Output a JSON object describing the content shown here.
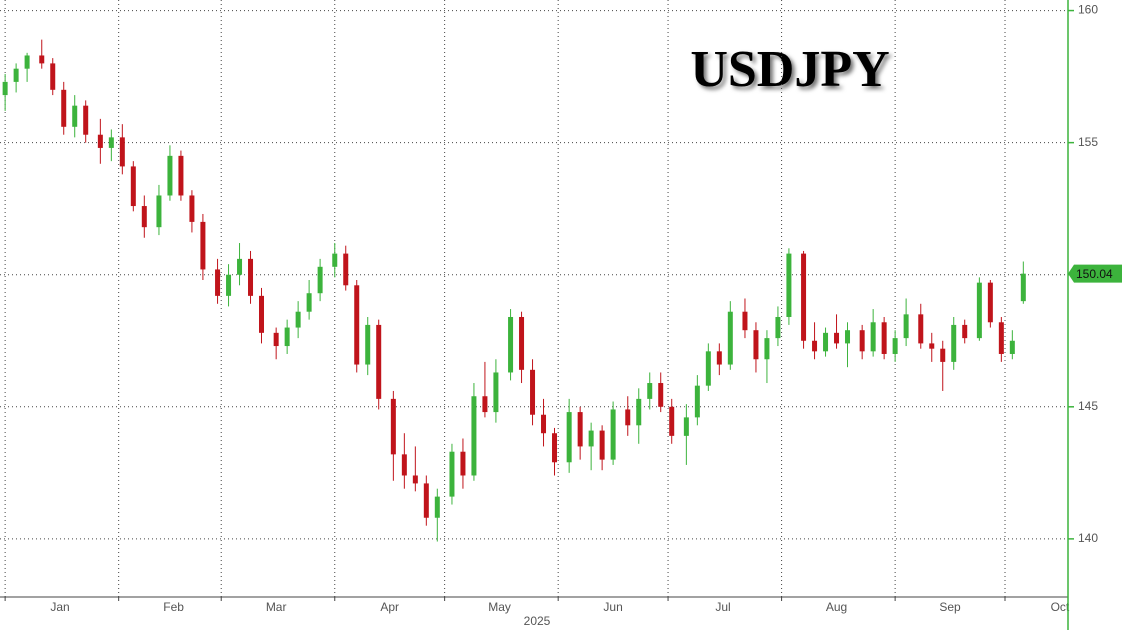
{
  "chart_data": {
    "type": "candlestick",
    "title": "USDJPY",
    "xlabel": "2025",
    "up_color": "#3cb33c",
    "down_color": "#c0141b",
    "axis_color": "#3cb33c",
    "grid": true,
    "xlim": [
      -1.4,
      290.2
    ],
    "ylim": [
      137.8,
      160.4
    ],
    "xticks": [
      {
        "value": 0,
        "label": "Jan"
      },
      {
        "value": 31,
        "label": "Feb"
      },
      {
        "value": 59,
        "label": "Mar"
      },
      {
        "value": 90,
        "label": "Apr"
      },
      {
        "value": 120,
        "label": "May"
      },
      {
        "value": 151,
        "label": "Jun"
      },
      {
        "value": 181,
        "label": "Jul"
      },
      {
        "value": 212,
        "label": "Aug"
      },
      {
        "value": 243,
        "label": "Sep"
      },
      {
        "value": 273,
        "label": "Oct"
      }
    ],
    "yticks": [
      140,
      145,
      150,
      155,
      160
    ],
    "x": [
      0,
      3,
      6,
      10,
      13,
      16,
      19,
      22,
      26,
      29,
      32,
      35,
      38,
      42,
      45,
      48,
      51,
      54,
      58,
      61,
      64,
      67,
      70,
      74,
      77,
      80,
      83,
      86,
      90,
      93,
      96,
      99,
      102,
      106,
      109,
      112,
      115,
      118,
      122,
      125,
      128,
      131,
      134,
      138,
      141,
      144,
      147,
      150,
      154,
      157,
      160,
      163,
      166,
      170,
      173,
      176,
      179,
      182,
      186,
      189,
      192,
      195,
      198,
      202,
      205,
      208,
      211,
      214,
      218,
      221,
      224,
      227,
      230,
      234,
      237,
      240,
      243,
      246,
      250,
      253,
      256,
      259,
      262,
      266,
      269,
      272,
      275,
      278
    ],
    "open": [
      156.8,
      157.3,
      157.8,
      158.3,
      158.0,
      157.0,
      155.6,
      156.4,
      155.3,
      154.8,
      155.2,
      154.1,
      152.6,
      151.8,
      153.0,
      154.5,
      153.0,
      152.0,
      150.2,
      149.2,
      150.0,
      150.6,
      149.2,
      147.8,
      147.3,
      148.0,
      148.6,
      149.3,
      150.3,
      150.8,
      149.6,
      146.6,
      148.1,
      145.3,
      143.2,
      142.4,
      142.1,
      140.8,
      141.6,
      143.3,
      142.4,
      145.4,
      144.8,
      146.3,
      148.4,
      146.4,
      144.7,
      144.0,
      142.9,
      144.8,
      143.5,
      144.1,
      143.0,
      144.9,
      144.3,
      145.3,
      145.9,
      145.0,
      143.9,
      144.6,
      145.8,
      147.1,
      146.6,
      148.6,
      147.9,
      146.8,
      147.6,
      148.4,
      150.8,
      147.5,
      147.1,
      147.8,
      147.4,
      147.9,
      147.1,
      148.2,
      147.0,
      147.6,
      148.5,
      147.4,
      147.2,
      146.7,
      148.1,
      147.6,
      149.7,
      148.2,
      147.0,
      149.0
    ],
    "high": [
      157.6,
      158.0,
      158.4,
      158.9,
      158.2,
      157.3,
      156.8,
      156.6,
      155.9,
      155.5,
      155.7,
      154.3,
      153.0,
      153.4,
      154.9,
      154.7,
      153.2,
      152.3,
      150.6,
      150.4,
      151.2,
      150.9,
      149.5,
      148.0,
      148.3,
      149.0,
      149.8,
      150.6,
      151.2,
      151.1,
      149.8,
      148.4,
      148.3,
      145.6,
      144.0,
      143.5,
      142.4,
      141.9,
      143.6,
      143.8,
      145.9,
      146.7,
      146.8,
      148.7,
      148.6,
      146.8,
      145.3,
      144.2,
      145.3,
      145.0,
      144.4,
      144.3,
      145.2,
      145.4,
      145.7,
      146.3,
      146.3,
      145.3,
      145.1,
      146.2,
      147.4,
      147.4,
      149.0,
      149.1,
      148.2,
      147.9,
      148.8,
      151.0,
      150.9,
      148.2,
      148.0,
      148.5,
      148.2,
      148.1,
      148.7,
      148.4,
      147.9,
      149.1,
      148.9,
      147.8,
      147.5,
      148.4,
      148.3,
      149.9,
      149.8,
      148.4,
      147.9,
      150.5
    ],
    "low": [
      156.2,
      156.9,
      157.3,
      157.8,
      156.8,
      155.3,
      155.2,
      155.0,
      154.2,
      154.3,
      153.8,
      152.4,
      151.4,
      151.5,
      152.8,
      152.8,
      151.6,
      149.8,
      148.9,
      148.8,
      149.6,
      148.9,
      147.4,
      146.8,
      147.0,
      147.6,
      148.3,
      149.0,
      149.9,
      149.4,
      146.3,
      146.2,
      144.9,
      142.2,
      141.9,
      141.8,
      140.5,
      139.9,
      141.3,
      141.9,
      142.2,
      144.6,
      144.4,
      146.0,
      145.9,
      144.3,
      143.5,
      142.4,
      142.5,
      143.0,
      142.6,
      142.6,
      142.8,
      143.9,
      143.6,
      144.9,
      144.8,
      143.6,
      142.8,
      144.3,
      145.6,
      146.2,
      146.4,
      147.6,
      146.3,
      145.9,
      147.3,
      148.1,
      147.2,
      146.8,
      146.9,
      147.2,
      146.5,
      146.8,
      146.9,
      146.8,
      146.7,
      147.3,
      147.2,
      146.7,
      145.6,
      146.4,
      147.4,
      147.5,
      148.0,
      146.7,
      146.8,
      148.9
    ],
    "close": [
      157.3,
      157.8,
      158.3,
      158.0,
      157.0,
      155.6,
      156.4,
      155.3,
      154.8,
      155.2,
      154.1,
      152.6,
      151.8,
      153.0,
      154.5,
      153.0,
      152.0,
      150.2,
      149.2,
      150.0,
      150.6,
      149.2,
      147.8,
      147.3,
      148.0,
      148.6,
      149.3,
      150.3,
      150.8,
      149.6,
      146.6,
      148.1,
      145.3,
      143.2,
      142.4,
      142.1,
      140.8,
      141.6,
      143.3,
      142.4,
      145.4,
      144.8,
      146.3,
      148.4,
      146.4,
      144.7,
      144.0,
      142.9,
      144.8,
      143.5,
      144.1,
      143.0,
      144.9,
      144.3,
      145.3,
      145.9,
      145.0,
      143.9,
      144.6,
      145.8,
      147.1,
      146.6,
      148.6,
      147.9,
      146.8,
      147.6,
      148.4,
      150.8,
      147.5,
      147.1,
      147.8,
      147.4,
      147.9,
      147.1,
      148.2,
      147.0,
      147.6,
      148.5,
      147.4,
      147.2,
      146.7,
      148.1,
      147.6,
      149.7,
      148.2,
      147.0,
      147.5,
      150.04
    ]
  }
}
